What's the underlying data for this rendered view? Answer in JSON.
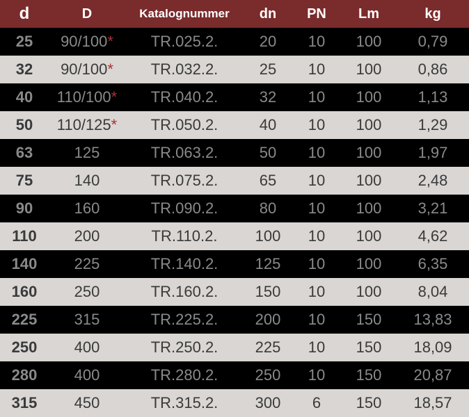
{
  "table": {
    "columns": [
      "d",
      "D",
      "Katalognummer",
      "dn",
      "PN",
      "Lm",
      "kg"
    ],
    "rows": [
      {
        "d": "25",
        "D": "90/100",
        "asterisk": true,
        "katalog": "TR.025.2.",
        "dn": "20",
        "pn": "10",
        "lm": "100",
        "kg": "0,79",
        "shade": "dark"
      },
      {
        "d": "32",
        "D": "90/100",
        "asterisk": true,
        "katalog": "TR.032.2.",
        "dn": "25",
        "pn": "10",
        "lm": "100",
        "kg": "0,86",
        "shade": "light"
      },
      {
        "d": "40",
        "D": "110/100",
        "asterisk": true,
        "katalog": "TR.040.2.",
        "dn": "32",
        "pn": "10",
        "lm": "100",
        "kg": "1,13",
        "shade": "dark"
      },
      {
        "d": "50",
        "D": "110/125",
        "asterisk": true,
        "katalog": "TR.050.2.",
        "dn": "40",
        "pn": "10",
        "lm": "100",
        "kg": "1,29",
        "shade": "light"
      },
      {
        "d": "63",
        "D": "125",
        "asterisk": false,
        "katalog": "TR.063.2.",
        "dn": "50",
        "pn": "10",
        "lm": "100",
        "kg": "1,97",
        "shade": "dark"
      },
      {
        "d": "75",
        "D": "140",
        "asterisk": false,
        "katalog": "TR.075.2.",
        "dn": "65",
        "pn": "10",
        "lm": "100",
        "kg": "2,48",
        "shade": "light"
      },
      {
        "d": "90",
        "D": "160",
        "asterisk": false,
        "katalog": "TR.090.2.",
        "dn": "80",
        "pn": "10",
        "lm": "100",
        "kg": "3,21",
        "shade": "dark"
      },
      {
        "d": "110",
        "D": "200",
        "asterisk": false,
        "katalog": "TR.110.2.",
        "dn": "100",
        "pn": "10",
        "lm": "100",
        "kg": "4,62",
        "shade": "light"
      },
      {
        "d": "140",
        "D": "225",
        "asterisk": false,
        "katalog": "TR.140.2.",
        "dn": "125",
        "pn": "10",
        "lm": "100",
        "kg": "6,35",
        "shade": "dark"
      },
      {
        "d": "160",
        "D": "250",
        "asterisk": false,
        "katalog": "TR.160.2.",
        "dn": "150",
        "pn": "10",
        "lm": "100",
        "kg": "8,04",
        "shade": "light"
      },
      {
        "d": "225",
        "D": "315",
        "asterisk": false,
        "katalog": "TR.225.2.",
        "dn": "200",
        "pn": "10",
        "lm": "150",
        "kg": "13,83",
        "shade": "dark"
      },
      {
        "d": "250",
        "D": "400",
        "asterisk": false,
        "katalog": "TR.250.2.",
        "dn": "225",
        "pn": "10",
        "lm": "150",
        "kg": "18,09",
        "shade": "light"
      },
      {
        "d": "280",
        "D": "400",
        "asterisk": false,
        "katalog": "TR.280.2.",
        "dn": "250",
        "pn": "10",
        "lm": "150",
        "kg": "20,87",
        "shade": "dark"
      },
      {
        "d": "315",
        "D": "450",
        "asterisk": false,
        "katalog": "TR.315.2.",
        "dn": "300",
        "pn": "6",
        "lm": "150",
        "kg": "18,57",
        "shade": "light"
      }
    ],
    "header_bg": "#7a2b2b",
    "header_text_color": "#ffffff",
    "row_dark_bg": "#000000",
    "row_dark_text": "#8a8a8a",
    "row_light_bg": "#d9d6d3",
    "row_light_text": "#3a3a3a",
    "asterisk_color": "#b03030"
  }
}
